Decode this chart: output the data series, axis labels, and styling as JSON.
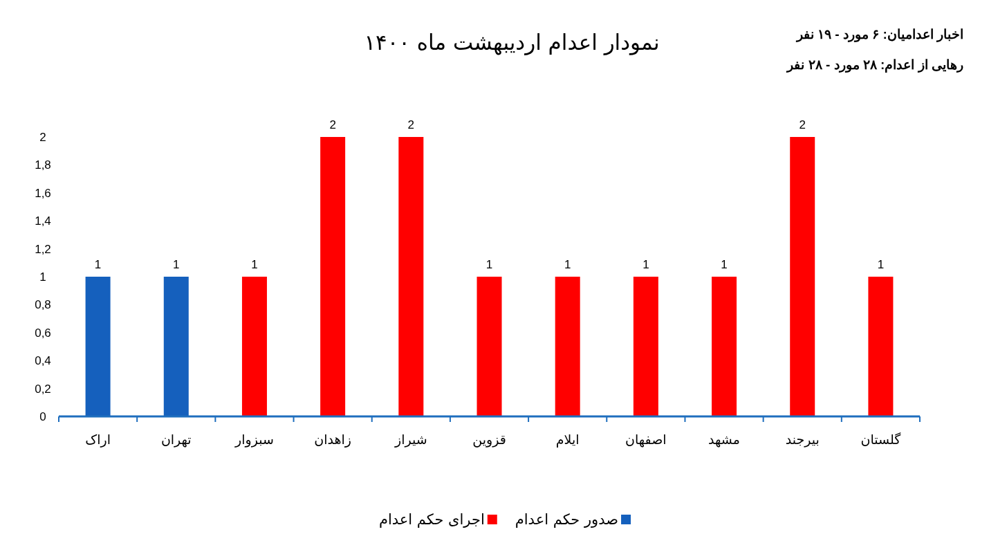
{
  "chart_data": {
    "type": "bar",
    "title": "نمودار اعدام اردیبهشت ماه ۱۴۰۰",
    "annotations": [
      "اخبار اعدامیان: ۶ مورد - ۱۹ نفر",
      "رهایی از اعدام: ۲۸ مورد - ۲۸ نفر"
    ],
    "categories": [
      "اراک",
      "تهران",
      "سبزوار",
      "زاهدان",
      "شیراز",
      "قزوین",
      "ایلام",
      "اصفهان",
      "مشهد",
      "بیرجند",
      "گلستان"
    ],
    "series": [
      {
        "name": "صدور حکم اعدام",
        "color": "#1560bd",
        "values": [
          1,
          1,
          null,
          null,
          null,
          null,
          null,
          null,
          null,
          null,
          null
        ]
      },
      {
        "name": "اجرای حکم اعدام",
        "color": "#ff0000",
        "values": [
          null,
          null,
          1,
          2,
          2,
          1,
          1,
          1,
          1,
          2,
          1
        ]
      }
    ],
    "ylim": [
      0,
      2
    ],
    "yticks": [
      0,
      {
        "value": 0.2,
        "label": "0,2"
      },
      {
        "value": 0.4,
        "label": "0,4"
      },
      {
        "value": 0.6,
        "label": "0,6"
      },
      {
        "value": 0.8,
        "label": "0,8"
      },
      1,
      {
        "value": 1.2,
        "label": "1,2"
      },
      {
        "value": 1.4,
        "label": "1,4"
      },
      {
        "value": 1.6,
        "label": "1,6"
      },
      {
        "value": 1.8,
        "label": "1,8"
      },
      2
    ],
    "data_labels": true,
    "legend": "bottom",
    "grid": false
  }
}
